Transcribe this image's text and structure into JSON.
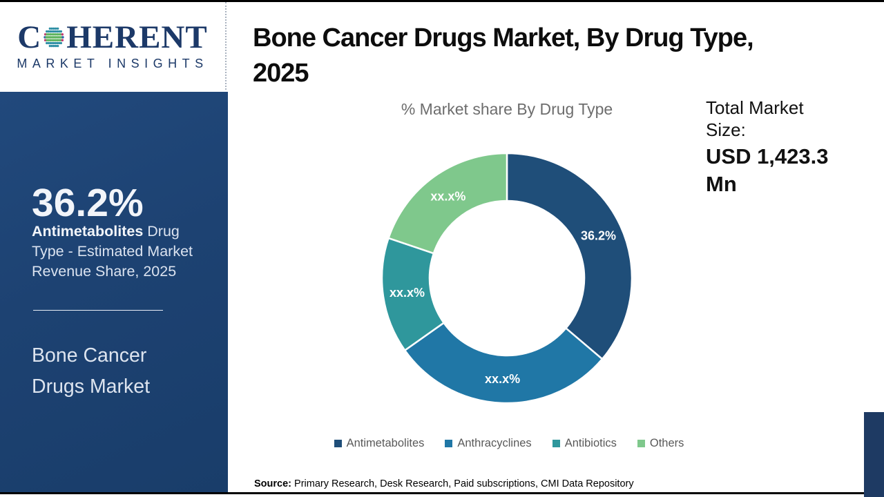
{
  "brand": {
    "logo_start": "C",
    "logo_end": "HERENT",
    "logo_sub": "MARKET INSIGHTS",
    "logo_text_color": "#1c3968",
    "globe_colors": [
      "#2e8fa5",
      "#5cb35c",
      "#c2356f",
      "#2b63a8"
    ]
  },
  "header": {
    "title": "Bone Cancer Drugs Market, By Drug Type,\n2025"
  },
  "sidebar": {
    "highlight_value": "36.2%",
    "highlight_bold": "Antimetabolites",
    "highlight_rest": " Drug Type - Estimated Market Revenue Share, 2025",
    "market_name": "Bone Cancer Drugs Market"
  },
  "total": {
    "label": "Total Market Size:",
    "value": "USD 1,423.3 Mn"
  },
  "source": {
    "label": "Source:",
    "text": " Primary Research, Desk Research, Paid subscriptions, CMI Data Repository"
  },
  "chart_data": {
    "type": "pie",
    "subtype": "donut",
    "title": "% Market share By Drug Type",
    "categories": [
      "Antimetabolites",
      "Anthracyclines",
      "Antibiotics",
      "Others"
    ],
    "values": [
      36.2,
      29.0,
      15.0,
      19.8
    ],
    "displayed_labels": [
      "36.2%",
      "xx.x%",
      "xx.x%",
      "xx.x%"
    ],
    "colors": [
      "#1F4E79",
      "#2077A6",
      "#2F979C",
      "#7FC88C"
    ],
    "legend_position": "bottom",
    "start_angle_deg": 0,
    "direction": "clockwise",
    "outer_radius": 181,
    "inner_radius": 112,
    "label_radius": 146
  }
}
